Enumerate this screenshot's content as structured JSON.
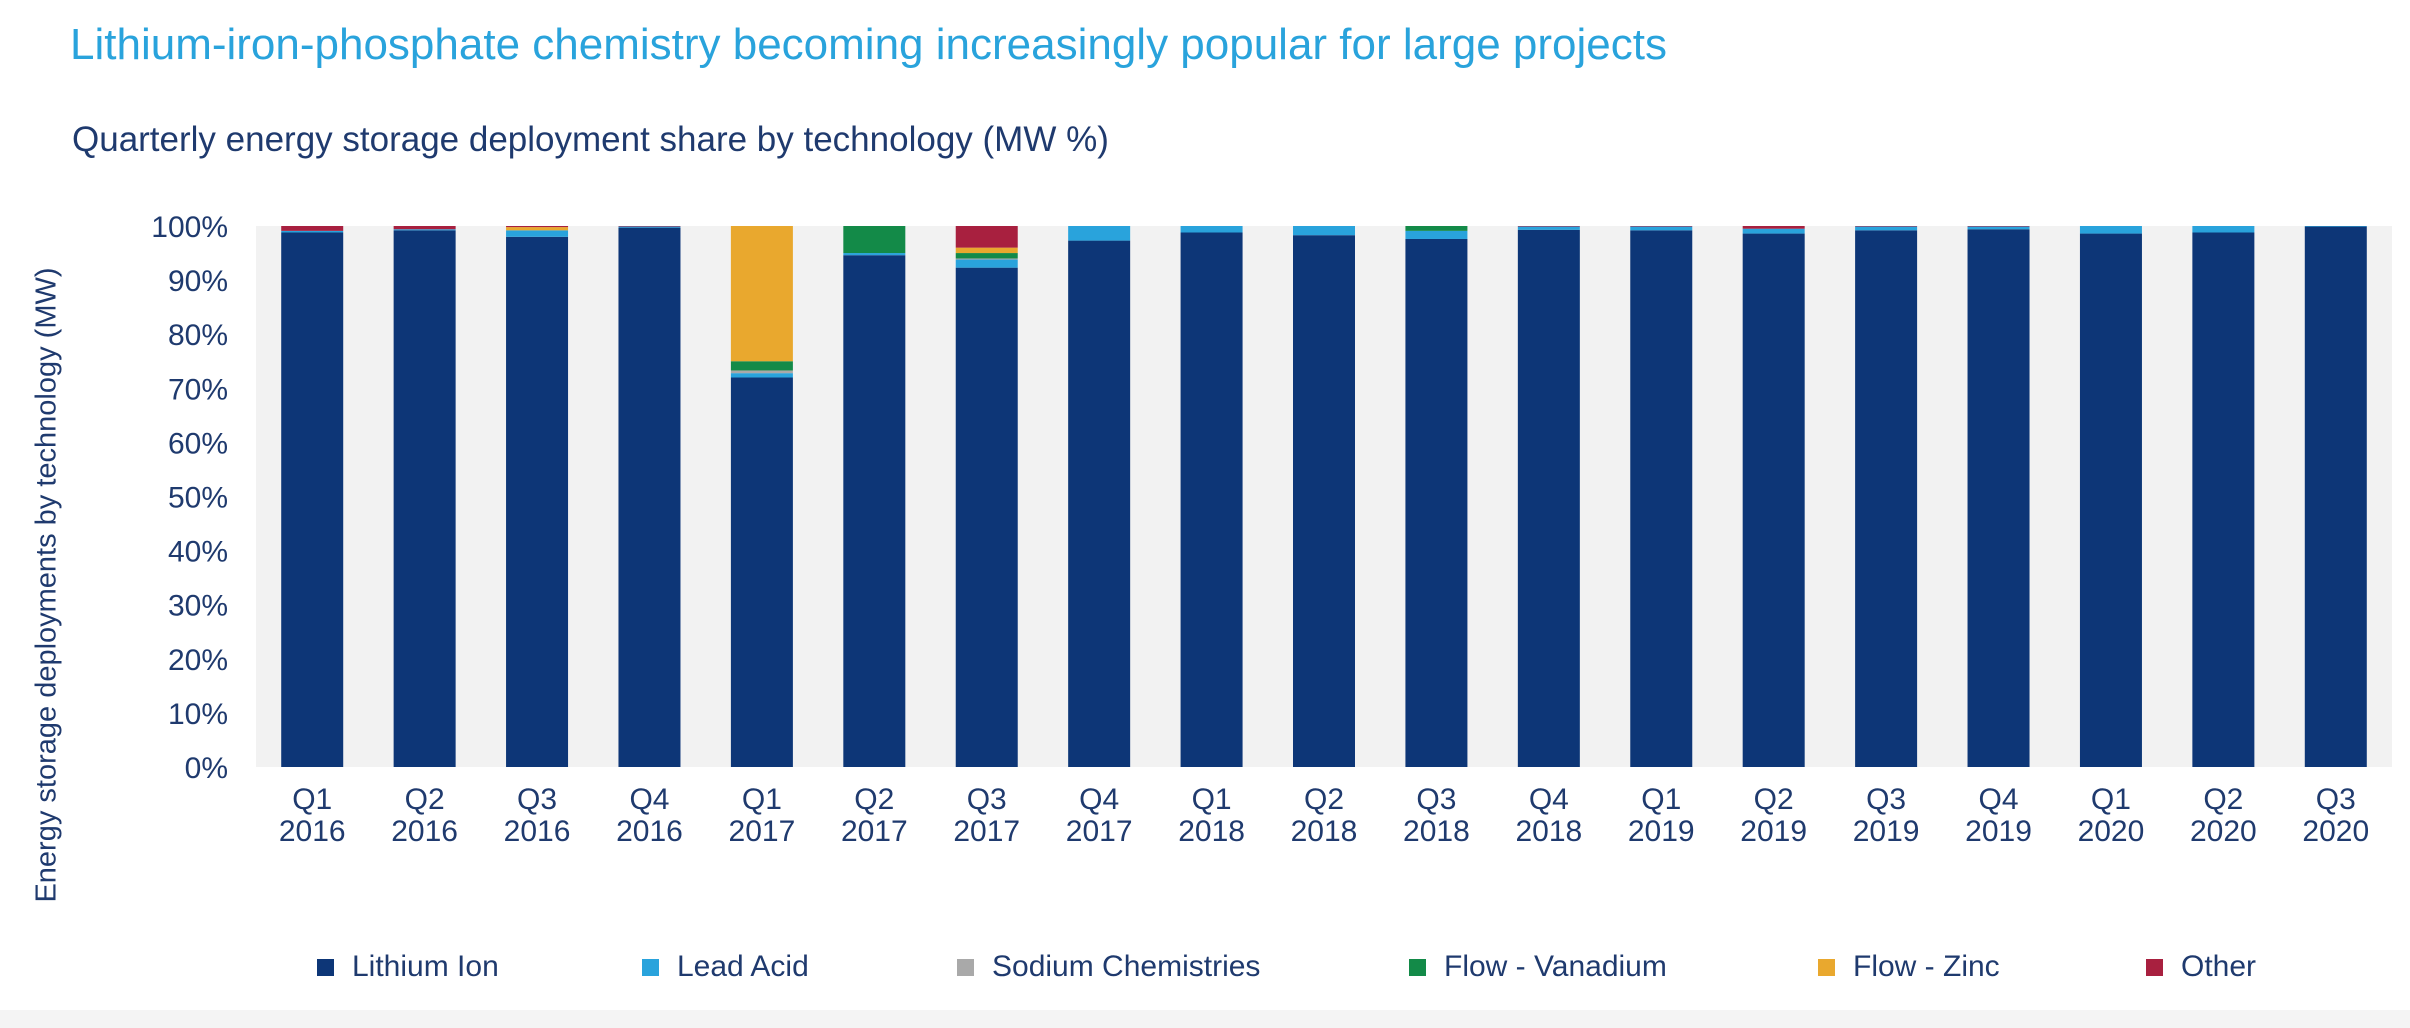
{
  "title": "Lithium-iron-phosphate chemistry becoming increasingly popular for large projects",
  "subtitle": "Quarterly energy storage deployment share by technology (MW %)",
  "chart_data": {
    "type": "bar",
    "stacked": true,
    "ylabel": "Energy storage deployments by technology (MW)",
    "ylim": [
      0,
      100
    ],
    "yticks": [
      "0%",
      "10%",
      "20%",
      "30%",
      "40%",
      "50%",
      "60%",
      "70%",
      "80%",
      "90%",
      "100%"
    ],
    "grid": false,
    "legend_position": "bottom",
    "categories": [
      [
        "Q1",
        "2016"
      ],
      [
        "Q2",
        "2016"
      ],
      [
        "Q3",
        "2016"
      ],
      [
        "Q4",
        "2016"
      ],
      [
        "Q1",
        "2017"
      ],
      [
        "Q2",
        "2017"
      ],
      [
        "Q3",
        "2017"
      ],
      [
        "Q4",
        "2017"
      ],
      [
        "Q1",
        "2018"
      ],
      [
        "Q2",
        "2018"
      ],
      [
        "Q3",
        "2018"
      ],
      [
        "Q4",
        "2018"
      ],
      [
        "Q1",
        "2019"
      ],
      [
        "Q2",
        "2019"
      ],
      [
        "Q3",
        "2019"
      ],
      [
        "Q4",
        "2019"
      ],
      [
        "Q1",
        "2020"
      ],
      [
        "Q2",
        "2020"
      ],
      [
        "Q3",
        "2020"
      ]
    ],
    "series": [
      {
        "name": "Lithium Ion",
        "color": "#0d3677",
        "values": [
          98.8,
          99.2,
          98.0,
          99.7,
          72.0,
          94.6,
          92.3,
          97.3,
          98.8,
          98.3,
          97.6,
          99.3,
          99.2,
          98.6,
          99.2,
          99.4,
          98.6,
          98.8,
          99.9
        ]
      },
      {
        "name": "Lead Acid",
        "color": "#29a3dc",
        "values": [
          0.3,
          0.2,
          1.2,
          0.2,
          0.8,
          0.4,
          1.5,
          2.7,
          1.2,
          1.7,
          1.5,
          0.6,
          0.7,
          0.9,
          0.7,
          0.5,
          1.4,
          1.2,
          0.1
        ]
      },
      {
        "name": "Sodium Chemistries",
        "color": "#a9a9a9",
        "values": [
          0,
          0,
          0,
          0,
          0.5,
          0,
          0.2,
          0,
          0,
          0,
          0,
          0,
          0,
          0,
          0,
          0,
          0,
          0,
          0
        ]
      },
      {
        "name": "Flow - Vanadium",
        "color": "#138a48",
        "values": [
          0,
          0,
          0,
          0,
          1.7,
          5.0,
          1.0,
          0,
          0,
          0,
          0.9,
          0,
          0,
          0,
          0,
          0,
          0,
          0,
          0
        ]
      },
      {
        "name": "Flow - Zinc",
        "color": "#e9a82e",
        "values": [
          0,
          0,
          0.6,
          0,
          25.0,
          0,
          1.0,
          0,
          0,
          0,
          0,
          0,
          0,
          0,
          0,
          0,
          0,
          0,
          0
        ]
      },
      {
        "name": "Other",
        "color": "#a8203f",
        "values": [
          0.9,
          0.6,
          0.2,
          0.1,
          0,
          0,
          4.0,
          0,
          0,
          0,
          0,
          0.1,
          0.1,
          0.5,
          0.1,
          0.1,
          0,
          0,
          0
        ]
      }
    ]
  }
}
